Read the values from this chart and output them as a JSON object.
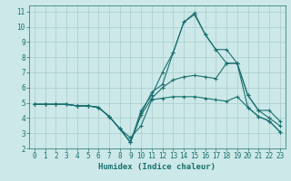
{
  "xlabel": "Humidex (Indice chaleur)",
  "xlim": [
    -0.5,
    23.5
  ],
  "ylim": [
    2,
    11.4
  ],
  "xticks": [
    0,
    1,
    2,
    3,
    4,
    5,
    6,
    7,
    8,
    9,
    10,
    11,
    12,
    13,
    14,
    15,
    16,
    17,
    18,
    19,
    20,
    21,
    22,
    23
  ],
  "yticks": [
    2,
    3,
    4,
    5,
    6,
    7,
    8,
    9,
    10,
    11
  ],
  "background_color": "#cce8e8",
  "grid_color": "#aacccc",
  "line_color": "#1a7070",
  "lines": [
    {
      "x": [
        0,
        1,
        2,
        3,
        4,
        5,
        6,
        7,
        8,
        9,
        10,
        11,
        12,
        13,
        14,
        15,
        16,
        17,
        18,
        19,
        20,
        21,
        22,
        23
      ],
      "y": [
        4.9,
        4.9,
        4.9,
        4.9,
        4.8,
        4.8,
        4.7,
        4.1,
        3.3,
        2.7,
        3.5,
        5.2,
        5.3,
        5.4,
        5.4,
        5.4,
        5.3,
        5.2,
        5.1,
        5.4,
        4.7,
        4.1,
        3.8,
        3.1
      ]
    },
    {
      "x": [
        0,
        1,
        2,
        3,
        4,
        5,
        6,
        7,
        8,
        9,
        10,
        11,
        12,
        13,
        14,
        15,
        16,
        17,
        18,
        19,
        20,
        21,
        22,
        23
      ],
      "y": [
        4.9,
        4.9,
        4.9,
        4.9,
        4.8,
        4.8,
        4.7,
        4.1,
        3.3,
        2.4,
        4.2,
        5.3,
        6.0,
        6.5,
        6.7,
        6.8,
        6.7,
        6.6,
        7.6,
        7.6,
        5.5,
        4.5,
        4.0,
        3.5
      ]
    },
    {
      "x": [
        0,
        1,
        2,
        3,
        4,
        5,
        6,
        7,
        8,
        9,
        10,
        11,
        12,
        13,
        14,
        15,
        16,
        17,
        18,
        19,
        20,
        21,
        22,
        23
      ],
      "y": [
        4.9,
        4.9,
        4.9,
        4.9,
        4.8,
        4.8,
        4.7,
        4.1,
        3.3,
        2.4,
        4.5,
        5.5,
        7.0,
        8.3,
        10.3,
        10.9,
        9.5,
        8.5,
        8.5,
        7.6,
        5.5,
        4.5,
        4.5,
        3.8
      ]
    },
    {
      "x": [
        0,
        1,
        2,
        3,
        4,
        5,
        6,
        7,
        8,
        9,
        10,
        11,
        12,
        13,
        14,
        15,
        16,
        17,
        18,
        19,
        20,
        21,
        22,
        23
      ],
      "y": [
        4.9,
        4.9,
        4.9,
        4.9,
        4.8,
        4.8,
        4.7,
        4.1,
        3.3,
        2.4,
        4.3,
        5.7,
        6.2,
        8.3,
        10.3,
        10.8,
        9.5,
        8.5,
        7.6,
        7.6,
        4.7,
        4.1,
        3.8,
        3.1
      ]
    }
  ]
}
